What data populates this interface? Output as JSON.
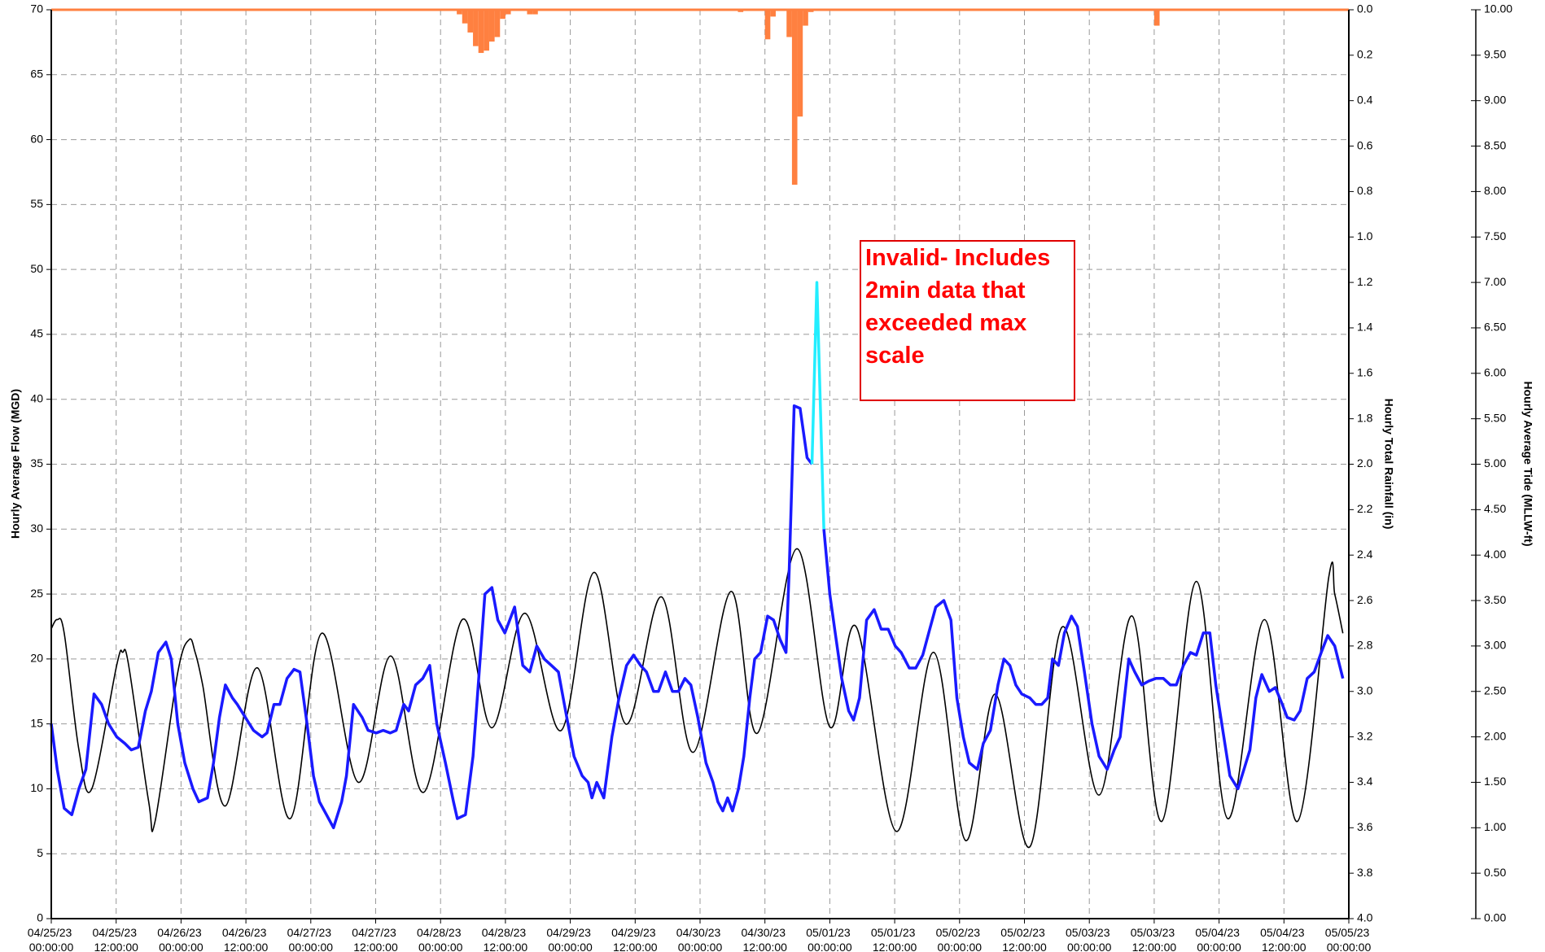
{
  "chart_data": {
    "type": "line",
    "ylabel": "Hourly Average Flow (MGD)",
    "y2label": "Hourly Total Rainfall (in)",
    "y3label": "Hourly Average Tide (MLLW-ft)",
    "annotation": [
      "Invalid- Includes",
      "2min data that",
      "exceeded max",
      "scale"
    ],
    "grid": true,
    "xlim": [
      0,
      240
    ],
    "xticks": [
      {
        "value": 0,
        "label": "04/25/23 00:00:00"
      },
      {
        "value": 12,
        "label": "04/25/23 12:00:00"
      },
      {
        "value": 24,
        "label": "04/26/23 00:00:00"
      },
      {
        "value": 36,
        "label": "04/26/23 12:00:00"
      },
      {
        "value": 48,
        "label": "04/27/23 00:00:00"
      },
      {
        "value": 60,
        "label": "04/27/23 12:00:00"
      },
      {
        "value": 72,
        "label": "04/28/23 00:00:00"
      },
      {
        "value": 84,
        "label": "04/28/23 12:00:00"
      },
      {
        "value": 96,
        "label": "04/29/23 00:00:00"
      },
      {
        "value": 108,
        "label": "04/29/23 12:00:00"
      },
      {
        "value": 120,
        "label": "04/30/23 00:00:00"
      },
      {
        "value": 132,
        "label": "04/30/23 12:00:00"
      },
      {
        "value": 144,
        "label": "05/01/23 00:00:00"
      },
      {
        "value": 156,
        "label": "05/01/23 12:00:00"
      },
      {
        "value": 168,
        "label": "05/02/23 00:00:00"
      },
      {
        "value": 180,
        "label": "05/02/23 12:00:00"
      },
      {
        "value": 192,
        "label": "05/03/23 00:00:00"
      },
      {
        "value": 204,
        "label": "05/03/23 12:00:00"
      },
      {
        "value": 216,
        "label": "05/04/23 00:00:00"
      },
      {
        "value": 228,
        "label": "05/04/23 12:00:00"
      },
      {
        "value": 240,
        "label": "05/05/23 00:00:00"
      }
    ],
    "ylim": [
      0,
      70
    ],
    "yticks": [
      0,
      5,
      10,
      15,
      20,
      25,
      30,
      35,
      40,
      45,
      50,
      55,
      60,
      65,
      70
    ],
    "y2lim": [
      4,
      0
    ],
    "y2ticks": [
      {
        "value": 0,
        "label": "0.0"
      },
      0.2,
      0.4,
      0.6,
      0.8,
      {
        "value": 1,
        "label": "1.0"
      },
      1.2,
      1.4,
      1.6,
      1.8,
      {
        "value": 2,
        "label": "2.0"
      },
      2.2,
      2.4,
      2.6,
      2.8,
      {
        "value": 3,
        "label": "3.0"
      },
      3.2,
      3.4,
      3.6,
      3.8,
      {
        "value": 4,
        "label": "4.0"
      }
    ],
    "y3lim": [
      0,
      10
    ],
    "y3ticks": [
      {
        "value": 0,
        "label": "0.00"
      },
      {
        "value": 0.5,
        "label": "0.50"
      },
      {
        "value": 1,
        "label": "1.00"
      },
      {
        "value": 1.5,
        "label": "1.50"
      },
      {
        "value": 2,
        "label": "2.00"
      },
      {
        "value": 2.5,
        "label": "2.50"
      },
      {
        "value": 3,
        "label": "3.00"
      },
      {
        "value": 3.5,
        "label": "3.50"
      },
      {
        "value": 4,
        "label": "4.00"
      },
      {
        "value": 4.5,
        "label": "4.50"
      },
      {
        "value": 5,
        "label": "5.00"
      },
      {
        "value": 5.5,
        "label": "5.50"
      },
      {
        "value": 6,
        "label": "6.00"
      },
      {
        "value": 6.5,
        "label": "6.50"
      },
      {
        "value": 7,
        "label": "7.00"
      },
      {
        "value": 7.5,
        "label": "7.50"
      },
      {
        "value": 8,
        "label": "8.00"
      },
      {
        "value": 8.5,
        "label": "8.50"
      },
      {
        "value": 9,
        "label": "9.00"
      },
      {
        "value": 9.5,
        "label": "9.50"
      },
      {
        "value": 10,
        "label": "10.00"
      }
    ],
    "series": [
      {
        "type": "bar",
        "axis": "y2",
        "color": "#ff8040",
        "x": [
          75,
          76,
          77,
          78,
          79,
          80,
          81,
          82,
          83,
          84,
          88,
          89,
          127,
          132,
          133,
          136,
          137,
          138,
          139,
          140,
          204
        ],
        "values": [
          0.02,
          0.06,
          0.1,
          0.16,
          0.19,
          0.18,
          0.14,
          0.12,
          0.04,
          0.02,
          0.02,
          0.02,
          0.01,
          0.13,
          0.03,
          0.12,
          0.77,
          0.47,
          0.07,
          0.01,
          0.07
        ]
      },
      {
        "type": "line",
        "axis": "y3",
        "color": "#000000",
        "width": 1.6,
        "smooth": true,
        "x": [
          0,
          1.1,
          2.4,
          5.1,
          7.5,
          12.1,
          13.2,
          14.3,
          18.0,
          19.2,
          23.4,
          25.5,
          26.6,
          28.0,
          32.2,
          38.1,
          44.2,
          50.0,
          56.8,
          62.8,
          68.9,
          76.0,
          81.5,
          87.6,
          94.3,
          100.4,
          106.3,
          112.9,
          118.7,
          125.7,
          130.6,
          137.9,
          144.0,
          148.9,
          156.3,
          163.2,
          169.1,
          174.6,
          181.0,
          187.0,
          193.8,
          199.9,
          205.4,
          211.8,
          217.6,
          224.4,
          230.5,
          236.3,
          237.4,
          238.9
        ],
        "values": [
          3.19,
          3.29,
          3.14,
          1.86,
          1.43,
          2.79,
          2.93,
          2.79,
          1.29,
          1.07,
          2.71,
          3.07,
          2.93,
          2.57,
          1.24,
          2.76,
          1.1,
          3.14,
          1.5,
          2.89,
          1.39,
          3.29,
          2.1,
          3.36,
          2.07,
          3.81,
          2.14,
          3.54,
          1.83,
          3.6,
          2.04,
          4.07,
          2.11,
          3.21,
          0.96,
          2.93,
          0.86,
          2.47,
          0.79,
          3.21,
          1.36,
          3.33,
          1.07,
          3.71,
          1.1,
          3.29,
          1.07,
          3.76,
          3.57,
          3.14
        ]
      },
      {
        "type": "line",
        "color": "#1a1aff",
        "width": 3.5,
        "x": [
          0,
          1.1,
          2.4,
          3.8,
          5.1,
          6.4,
          7.9,
          9.3,
          10.6,
          12.1,
          13.6,
          14.8,
          16.1,
          17.4,
          18.5,
          19.8,
          21.2,
          22.2,
          23.4,
          24.7,
          26.2,
          27.3,
          28.9,
          30.0,
          31.1,
          32.2,
          33.5,
          34.4,
          35.9,
          37.4,
          39.0,
          39.9,
          41.2,
          42.3,
          43.6,
          44.9,
          46.0,
          47.3,
          48.5,
          49.6,
          50.9,
          52.2,
          53.7,
          54.6,
          55.9,
          57.5,
          58.6,
          60.1,
          61.4,
          62.7,
          63.8,
          65.2,
          66.1,
          67.4,
          68.7,
          70.0,
          71.3,
          72.9,
          74.4,
          75.1,
          76.6,
          78.0,
          80.2,
          81.5,
          82.6,
          83.9,
          84.8,
          85.7,
          87.2,
          88.5,
          89.8,
          91.2,
          92.5,
          93.8,
          94.9,
          96.7,
          98.2,
          99.3,
          100.0,
          100.9,
          102.2,
          103.7,
          105.0,
          106.4,
          107.7,
          109.0,
          110.1,
          111.4,
          112.3,
          113.6,
          114.9,
          116.0,
          117.2,
          118.3,
          119.6,
          121.1,
          122.4,
          123.3,
          124.2,
          125.1,
          126.0,
          127.1,
          128.1,
          129.2,
          130.1,
          131.2,
          132.5,
          133.6,
          134.8,
          135.9,
          136.5,
          137.4,
          138.5,
          139.8,
          140.7,
          141.8,
          142.9,
          144.0,
          144.9,
          146.2,
          147.5,
          148.4,
          149.5,
          150.8,
          152.2,
          153.5,
          154.8,
          156.1,
          157.2,
          158.7,
          159.9,
          161.2,
          162.3,
          163.6,
          165.1,
          166.4,
          167.5,
          168.7,
          169.8,
          171.3,
          172.4,
          173.7,
          175.1,
          176.2,
          177.3,
          178.4,
          179.5,
          181.0,
          182.1,
          183.2,
          184.3,
          185.2,
          186.3,
          187.4,
          188.7,
          189.8,
          191.1,
          192.5,
          193.8,
          195.3,
          196.6,
          197.7,
          199.3,
          200.4,
          201.7,
          203.0,
          204.3,
          205.7,
          207.0,
          208.1,
          209.4,
          210.7,
          211.8,
          213.1,
          214.3,
          215.4,
          216.7,
          218.0,
          219.5,
          220.6,
          221.7,
          222.8,
          223.9,
          225.3,
          226.4,
          227.7,
          228.6,
          229.9,
          231.0,
          232.3,
          233.6,
          234.9,
          236.1,
          237.4,
          238.9
        ],
        "values": [
          15,
          11.5,
          8.5,
          8,
          10,
          11.5,
          17.3,
          16.5,
          15,
          14,
          13.5,
          13,
          13.2,
          16,
          17.5,
          20.5,
          21.3,
          20,
          15,
          12,
          10,
          9,
          9.3,
          12,
          15.5,
          18,
          17,
          16.5,
          15.5,
          14.5,
          14,
          14.3,
          16.5,
          16.5,
          18.5,
          19.2,
          19,
          15,
          11,
          9,
          8,
          7,
          9,
          11,
          16.5,
          15.5,
          14.5,
          14.3,
          14.5,
          14.3,
          14.5,
          16.5,
          16,
          18,
          18.5,
          19.5,
          15,
          12,
          9,
          7.7,
          8,
          12.5,
          25,
          25.5,
          23,
          22,
          23,
          24,
          19.5,
          19,
          21,
          20,
          19.5,
          19,
          16.5,
          12.5,
          11,
          10.5,
          9.3,
          10.5,
          9.3,
          14,
          17,
          19.5,
          20.3,
          19.5,
          19,
          17.5,
          17.5,
          19,
          17.5,
          17.5,
          18.5,
          18,
          15.5,
          12,
          10.5,
          9,
          8.3,
          9.3,
          8.3,
          10,
          12.5,
          17,
          20,
          20.5,
          23.3,
          23,
          21.5,
          20.5,
          27,
          39.5,
          39.3,
          35.5,
          35,
          null,
          30,
          25,
          22.3,
          18.5,
          16,
          15.3,
          17,
          23,
          23.8,
          22.3,
          22.3,
          21,
          20.5,
          19.3,
          19.3,
          20.3,
          22,
          24,
          24.5,
          23,
          17,
          14,
          12,
          11.5,
          13.5,
          14.5,
          18,
          20,
          19.5,
          18,
          17.3,
          17,
          16.5,
          16.5,
          17,
          20,
          19.5,
          22,
          23.3,
          22.5,
          19,
          15,
          12.5,
          11.5,
          13,
          14,
          20,
          19,
          18,
          18.3,
          18.5,
          18.5,
          18,
          18,
          19.5,
          20.5,
          20.3,
          22,
          22,
          18,
          14.5,
          11,
          10,
          11.5,
          13,
          17,
          18.8,
          17.5,
          17.8,
          16.5,
          15.5,
          15.3,
          16,
          18.5,
          19,
          20.5,
          21.8,
          21,
          18.5
        ]
      },
      {
        "type": "line",
        "color": "#22eeff",
        "width": 3.5,
        "x": [
          140.7,
          141.6,
          142.9
        ],
        "values": [
          35,
          49,
          30
        ]
      }
    ]
  }
}
